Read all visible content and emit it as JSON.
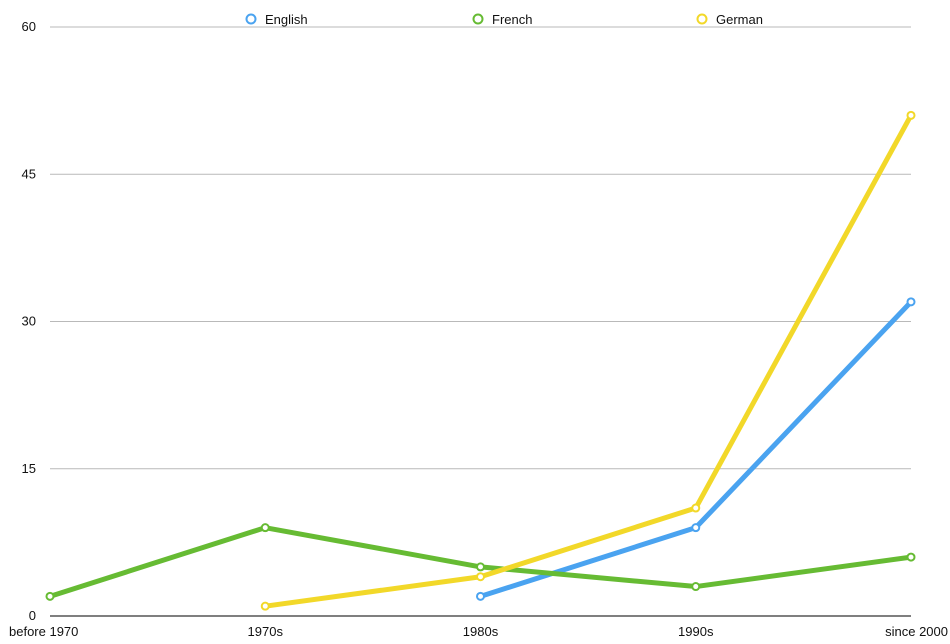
{
  "chart_data": {
    "type": "line",
    "title": "",
    "xlabel": "",
    "ylabel": "",
    "categories": [
      "before 1970",
      "1970s",
      "1980s",
      "1990s",
      "since 2000"
    ],
    "ylim": [
      0,
      60
    ],
    "yticks": [
      "0",
      "15",
      "30",
      "45",
      "60"
    ],
    "grid": true,
    "legend_position": "top",
    "series": [
      {
        "name": "English",
        "color": "#4aa3f0",
        "values": [
          null,
          null,
          2,
          9,
          32
        ]
      },
      {
        "name": "French",
        "color": "#66bb33",
        "values": [
          2,
          9,
          5,
          3,
          6
        ]
      },
      {
        "name": "German",
        "color": "#f2d829",
        "values": [
          null,
          1,
          4,
          11,
          51
        ]
      }
    ]
  }
}
